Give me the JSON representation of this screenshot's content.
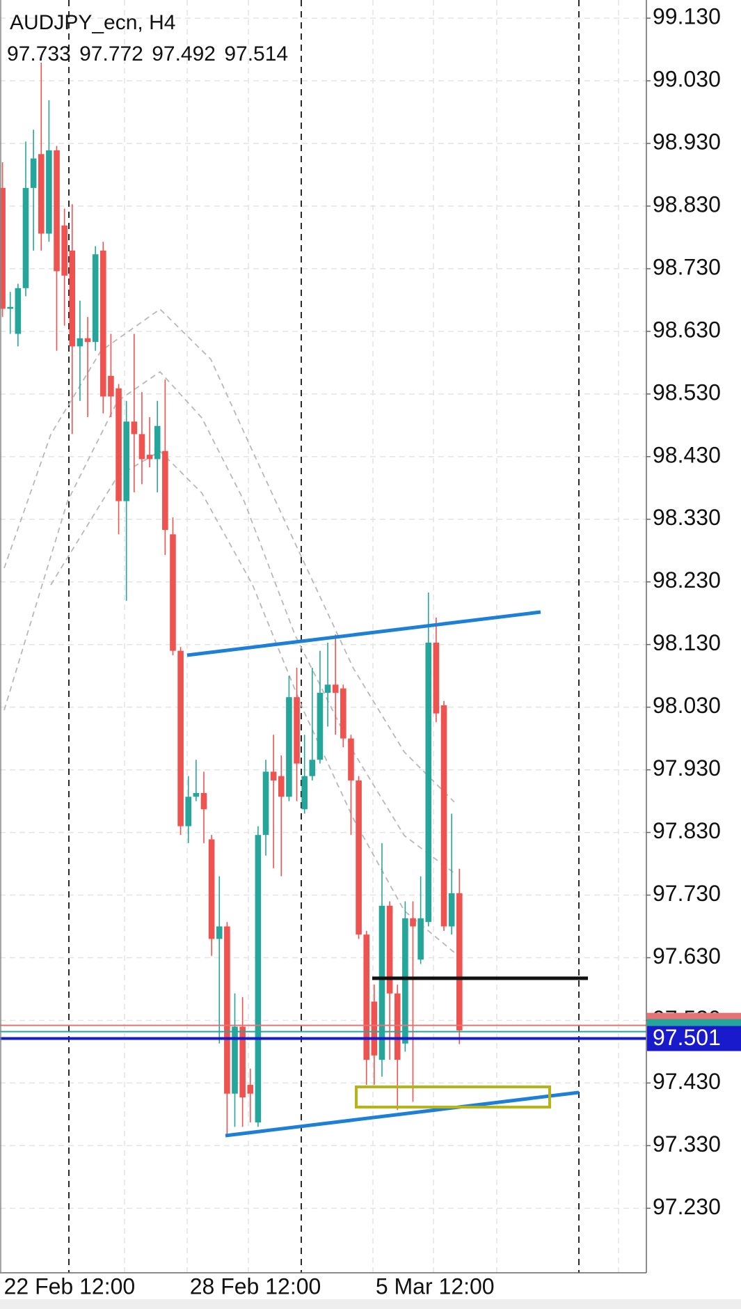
{
  "chart_data": {
    "type": "candlestick",
    "title": "AUDJPY_ecn, H4",
    "ohlc": [
      97.733,
      97.772,
      97.492,
      97.514
    ],
    "categories": [
      "22 Feb 12:00",
      null,
      null,
      null,
      null,
      null,
      null,
      null,
      null,
      null,
      null,
      null,
      null,
      null,
      null,
      null,
      null,
      null,
      null,
      null,
      null,
      null,
      null,
      null,
      "28 Feb 12:00",
      null,
      null,
      null,
      null,
      null,
      null,
      null,
      null,
      null,
      null,
      null,
      null,
      null,
      null,
      null,
      null,
      null,
      null,
      null,
      null,
      null,
      null,
      null,
      "5 Mar 12:00",
      null,
      null,
      null,
      null,
      null,
      null,
      null,
      null,
      null,
      null,
      null
    ],
    "open": [
      98.859,
      98.666,
      98.626,
      98.699,
      98.859,
      98.913,
      98.786,
      98.919,
      98.799,
      98.759,
      98.606,
      98.619,
      98.613,
      98.759,
      98.559,
      98.539,
      98.359,
      98.486,
      98.466,
      98.433,
      98.426,
      98.439,
      98.306,
      98.12,
      97.84,
      97.887,
      97.893,
      97.819,
      97.66,
      97.68,
      97.413,
      97.52,
      97.427,
      97.367,
      97.826,
      97.927,
      97.92,
      97.887,
      98.046,
      97.867,
      97.92,
      97.946,
      98.053,
      98.066,
      98.06,
      97.98,
      97.913,
      97.667,
      97.56,
      97.467,
      97.713,
      97.573,
      97.493,
      97.693,
      97.627,
      97.687,
      98.133,
      98.033,
      97.68,
      97.733
    ],
    "high": [
      98.9,
      98.693,
      98.706,
      98.933,
      98.952,
      99.059,
      98.999,
      98.926,
      98.826,
      98.833,
      98.679,
      98.653,
      98.766,
      98.773,
      98.626,
      98.546,
      98.519,
      98.626,
      98.533,
      98.493,
      98.519,
      98.553,
      98.333,
      98.126,
      97.92,
      97.946,
      97.927,
      97.826,
      97.76,
      97.687,
      97.573,
      97.567,
      97.453,
      97.84,
      97.946,
      97.986,
      97.953,
      98.08,
      98.093,
      97.986,
      98.093,
      98.12,
      98.133,
      98.146,
      98.066,
      97.986,
      97.92,
      97.673,
      97.587,
      97.813,
      97.72,
      97.587,
      97.72,
      97.72,
      97.76,
      98.213,
      98.173,
      98.04,
      97.86,
      97.772
    ],
    "low": [
      98.653,
      98.626,
      98.606,
      98.686,
      98.759,
      98.759,
      98.773,
      98.599,
      98.639,
      98.466,
      98.519,
      98.493,
      98.599,
      98.499,
      98.493,
      98.306,
      98.2,
      98.373,
      98.386,
      98.413,
      98.373,
      98.273,
      98.113,
      97.826,
      97.813,
      97.88,
      97.813,
      97.633,
      97.493,
      97.347,
      97.36,
      97.36,
      97.367,
      97.36,
      97.793,
      97.773,
      97.76,
      97.88,
      97.88,
      97.86,
      97.913,
      97.94,
      97.999,
      97.986,
      97.966,
      97.826,
      97.66,
      97.427,
      97.427,
      97.44,
      97.467,
      97.387,
      97.48,
      97.4,
      97.62,
      97.68,
      98.006,
      97.673,
      97.667,
      97.492
    ],
    "close": [
      98.666,
      98.669,
      98.699,
      98.859,
      98.906,
      98.786,
      98.919,
      98.726,
      98.719,
      98.606,
      98.619,
      98.613,
      98.753,
      98.526,
      98.526,
      98.359,
      98.486,
      98.466,
      98.426,
      98.426,
      98.479,
      98.313,
      98.12,
      97.84,
      97.887,
      97.893,
      97.867,
      97.66,
      97.68,
      97.413,
      97.52,
      97.407,
      97.413,
      97.826,
      97.927,
      97.913,
      97.887,
      98.046,
      97.94,
      97.92,
      97.946,
      98.053,
      98.066,
      98.053,
      97.98,
      97.913,
      97.667,
      97.467,
      97.474,
      97.713,
      97.573,
      97.467,
      97.693,
      97.68,
      97.693,
      98.133,
      98.02,
      97.68,
      97.733,
      97.514
    ],
    "up_color": "#26a69a",
    "down_color": "#ef5350",
    "ylim": [
      97.127,
      99.159
    ],
    "yticks": [
      {
        "value": 99.13,
        "label": "99.130"
      },
      {
        "value": 99.03,
        "label": "99.030"
      },
      {
        "value": 98.93,
        "label": "98.930"
      },
      {
        "value": 98.83,
        "label": "98.830"
      },
      {
        "value": 98.73,
        "label": "98.730"
      },
      {
        "value": 98.63,
        "label": "98.630"
      },
      {
        "value": 98.53,
        "label": "98.530"
      },
      {
        "value": 98.43,
        "label": "98.430"
      },
      {
        "value": 98.33,
        "label": "98.330"
      },
      {
        "value": 98.23,
        "label": "98.230"
      },
      {
        "value": 98.13,
        "label": "98.130"
      },
      {
        "value": 98.03,
        "label": "98.030"
      },
      {
        "value": 97.93,
        "label": "97.930"
      },
      {
        "value": 97.83,
        "label": "97.830"
      },
      {
        "value": 97.73,
        "label": "97.730"
      },
      {
        "value": 97.63,
        "label": "97.630"
      },
      {
        "value": 97.53,
        "label": "97.530"
      },
      {
        "value": 97.43,
        "label": "97.430"
      },
      {
        "value": 97.33,
        "label": "97.330"
      },
      {
        "value": 97.23,
        "label": "97.230"
      }
    ],
    "grid": true,
    "price_lines": [
      {
        "value": 97.522,
        "color": "#e57373"
      },
      {
        "value": 97.512,
        "color": "#26a69a"
      },
      {
        "value": 97.501,
        "color": "#1a1acd"
      }
    ]
  }
}
